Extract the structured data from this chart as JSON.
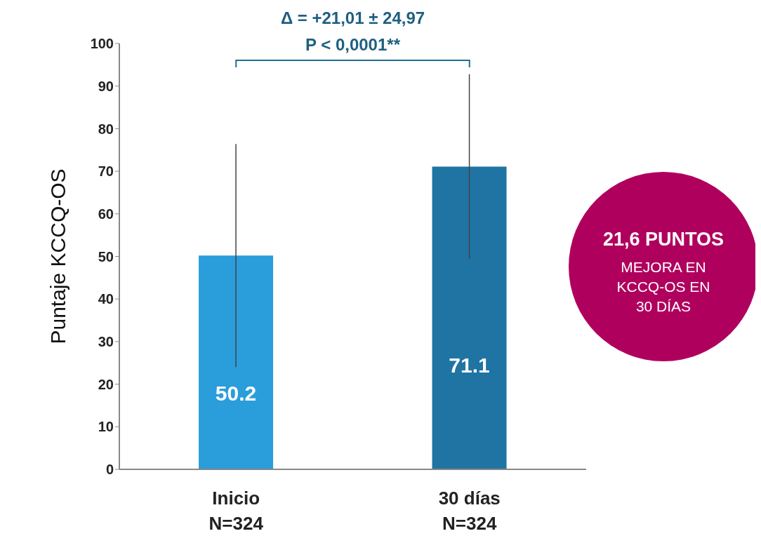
{
  "chart_data": {
    "type": "bar",
    "ylabel": "Puntaje KCCQ-OS",
    "categories": [
      "Inicio\nN=324",
      "30 días\nN=324"
    ],
    "values": [
      50.2,
      71.1
    ],
    "colors": [
      "#2a9ddb",
      "#1f74a3"
    ],
    "errors": [
      26.2,
      21.7
    ],
    "ylim": [
      0,
      100
    ],
    "yticks": [
      0,
      10,
      20,
      30,
      40,
      50,
      60,
      70,
      80,
      90,
      100
    ],
    "grid": false,
    "data_labels": true,
    "annotations": [
      "Δ = +21,01 ± 24,97",
      "P < 0,0001**",
      "21,6 PUNTOS",
      "MEJORA EN\nKCCQ-OS EN\n30 DÍAS"
    ]
  }
}
